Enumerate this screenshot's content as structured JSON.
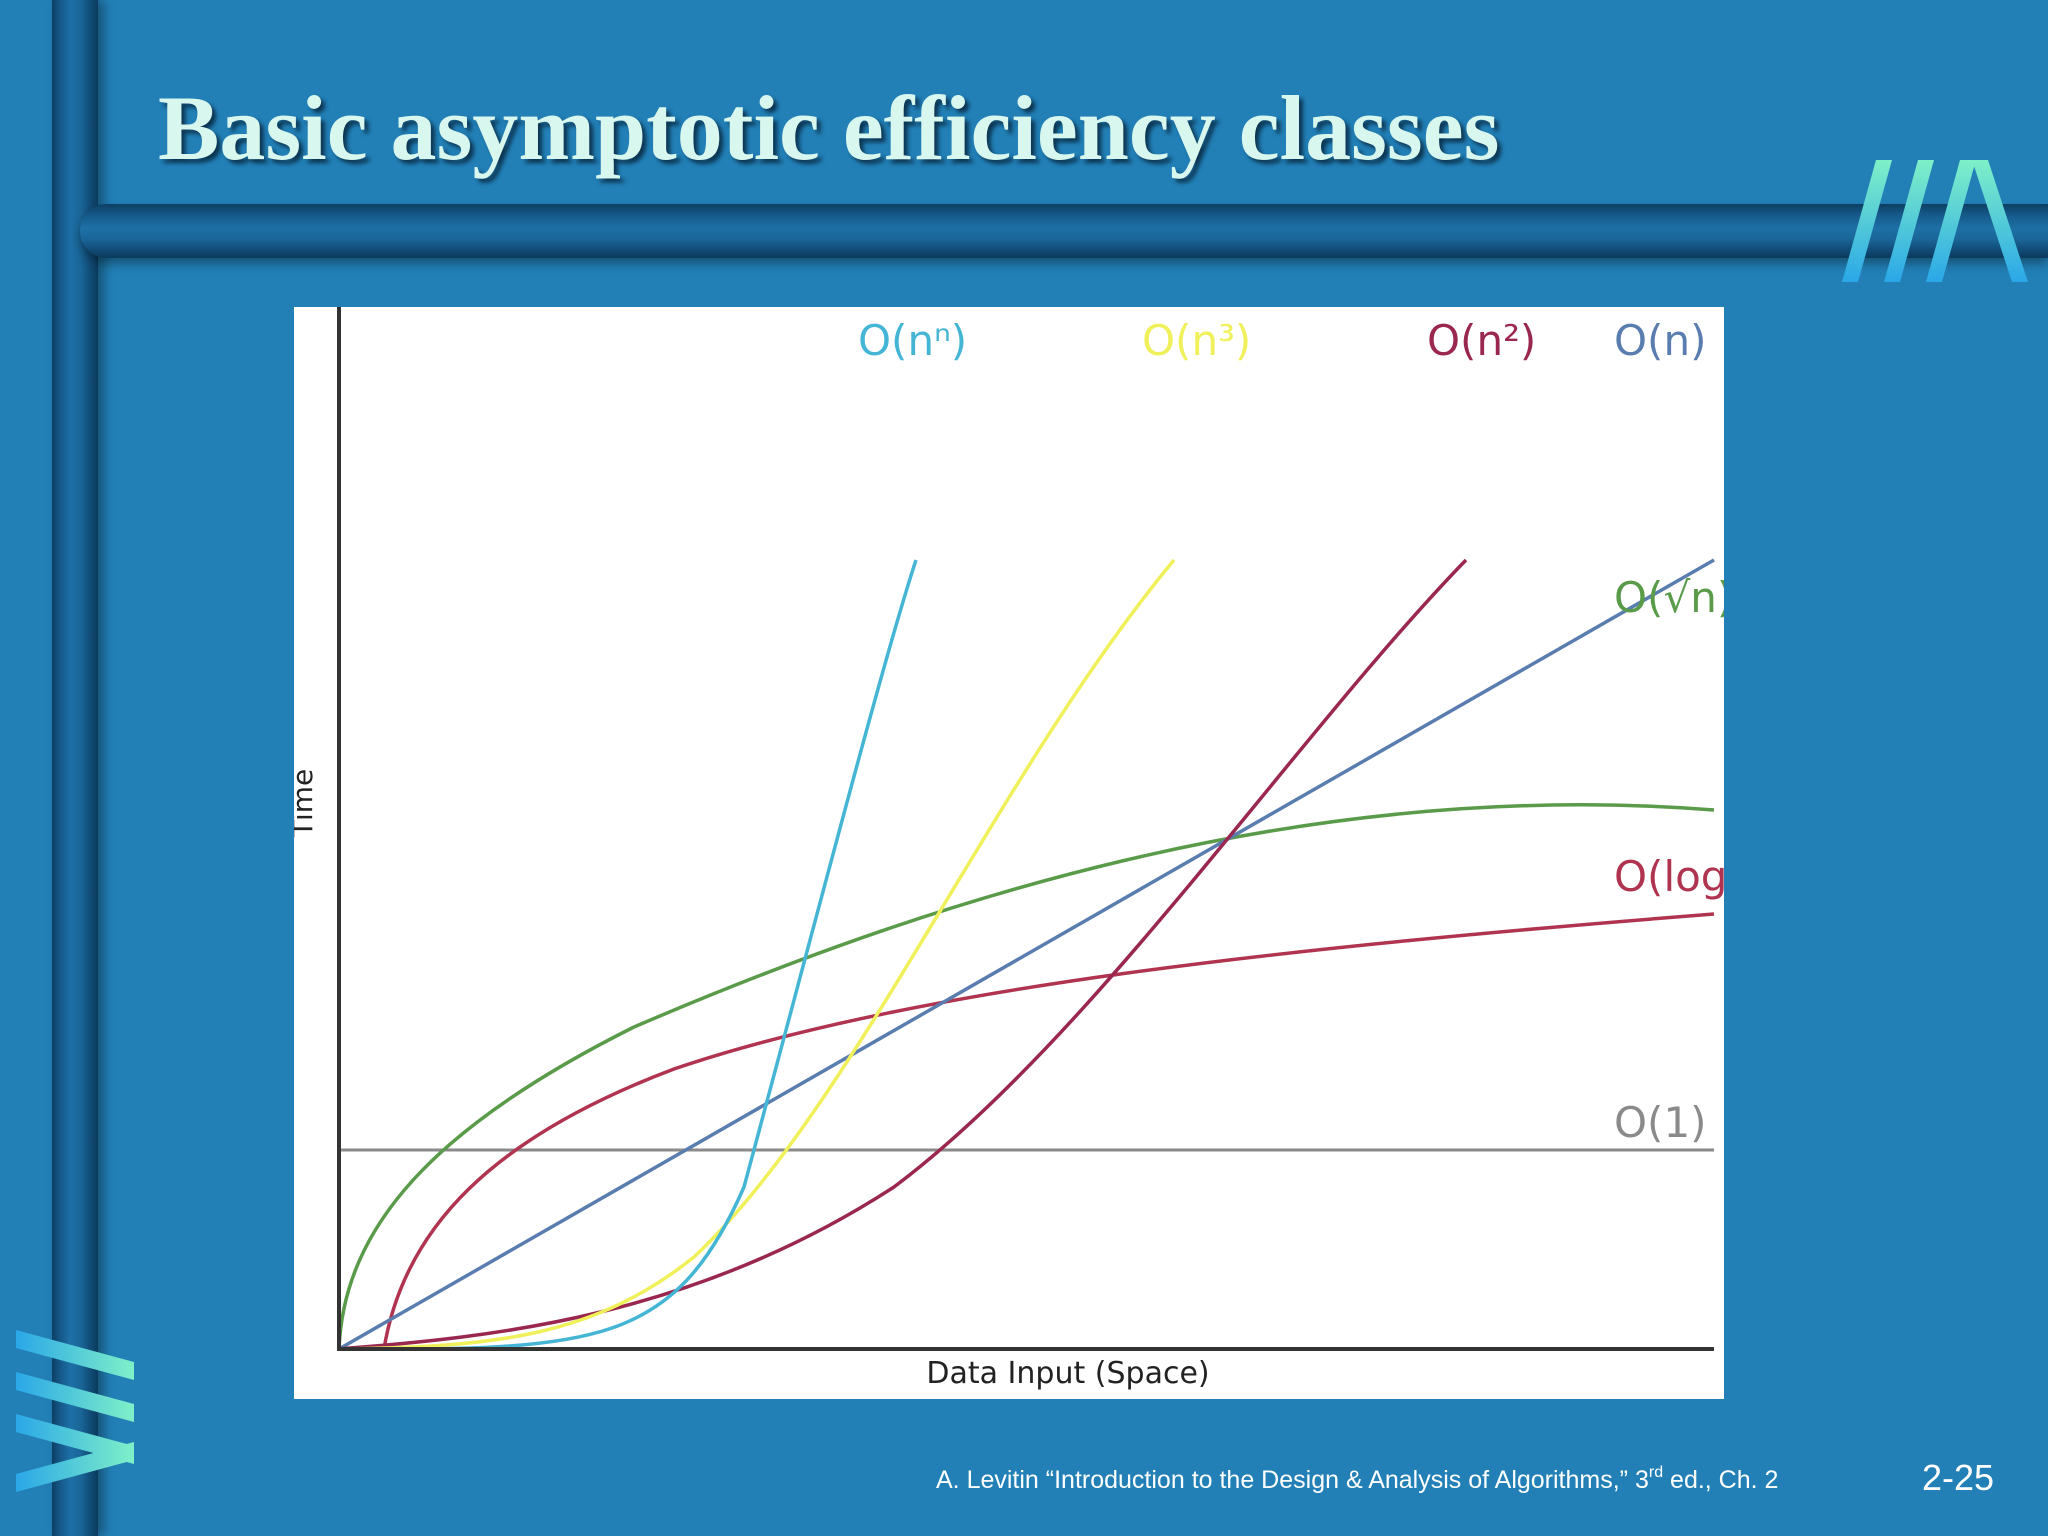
{
  "slide": {
    "title": "Basic asymptotic efficiency classes",
    "footer": {
      "prefix": "A. Levitin “Introduction to the Design & Analysis of Algorithms,” 3",
      "superscript": "rd",
      "suffix": " ed., Ch. 2"
    },
    "page_number": "2-25",
    "colors": {
      "background": "#2280b7",
      "title": "#d8f7ee",
      "bar_dark": "#0d3f63"
    },
    "icons": [
      "logo-stripes-top-icon",
      "logo-stripes-side-icon"
    ]
  },
  "chart_data": {
    "type": "line",
    "title": "",
    "xlabel": "Data Input (Space)",
    "ylabel": "Time",
    "axis_ticks": false,
    "grid": false,
    "legend": "none (series labeled directly at line ends)",
    "series": [
      {
        "name": "O(1)",
        "color": "#8a8a8a"
      },
      {
        "name": "O(log n)",
        "color": "#b0344f"
      },
      {
        "name": "O(√n)",
        "color": "#5a9b4a"
      },
      {
        "name": "O(n)",
        "color": "#5a7db0"
      },
      {
        "name": "O(n²)",
        "color": "#9a2750"
      },
      {
        "name": "O(n³)",
        "color": "#f0f05a"
      },
      {
        "name": "O(nⁿ)",
        "color": "#45b5d6"
      }
    ]
  }
}
